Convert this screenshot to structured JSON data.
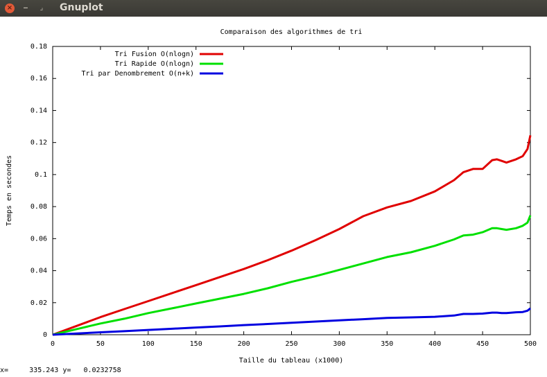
{
  "window": {
    "title": "Gnuplot",
    "close_glyph": "×",
    "minimize_glyph": "‒",
    "maximize_glyph": "⌟"
  },
  "status": {
    "x_label": "x=",
    "x_value": "335.243",
    "y_label": "y=",
    "y_value": "0.0232758"
  },
  "chart_data": {
    "type": "line",
    "title": "Comparaison des algorithmes de tri",
    "xlabel": "Taille du tableau (x1000)",
    "ylabel": "Temps en secondes",
    "xlim": [
      0,
      500
    ],
    "ylim": [
      0,
      0.18
    ],
    "xticks": [
      "0",
      "50",
      "100",
      "150",
      "200",
      "250",
      "300",
      "350",
      "400",
      "450",
      "500"
    ],
    "yticks": [
      "0",
      "0.02",
      "0.04",
      "0.06",
      "0.08",
      "0.1",
      "0.12",
      "0.14",
      "0.16",
      "0.18"
    ],
    "legend_position": "top-left",
    "grid": false,
    "series": [
      {
        "name": "Tri Fusion O(nlogn)",
        "color": "#e00000",
        "x": [
          0,
          25,
          50,
          75,
          100,
          125,
          150,
          175,
          200,
          225,
          250,
          275,
          300,
          325,
          350,
          375,
          400,
          420,
          430,
          440,
          450,
          460,
          465,
          470,
          475,
          485,
          492,
          497,
          500
        ],
        "y": [
          0,
          0.0055,
          0.011,
          0.016,
          0.021,
          0.026,
          0.031,
          0.036,
          0.041,
          0.0465,
          0.0525,
          0.059,
          0.066,
          0.074,
          0.0795,
          0.0835,
          0.0895,
          0.0965,
          0.1015,
          0.1035,
          0.1035,
          0.109,
          0.1095,
          0.1085,
          0.1075,
          0.1095,
          0.1115,
          0.116,
          0.1245
        ]
      },
      {
        "name": "Tri Rapide O(nlogn)",
        "color": "#00e000",
        "x": [
          0,
          25,
          50,
          75,
          100,
          125,
          150,
          175,
          200,
          225,
          250,
          275,
          300,
          325,
          350,
          375,
          400,
          420,
          430,
          440,
          450,
          460,
          465,
          470,
          475,
          485,
          492,
          497,
          500
        ],
        "y": [
          0,
          0.0035,
          0.007,
          0.01,
          0.0135,
          0.0165,
          0.0195,
          0.0225,
          0.0255,
          0.029,
          0.033,
          0.0365,
          0.0405,
          0.0445,
          0.0485,
          0.0515,
          0.0555,
          0.0595,
          0.062,
          0.0625,
          0.064,
          0.0665,
          0.0665,
          0.066,
          0.0655,
          0.0665,
          0.068,
          0.07,
          0.0745
        ]
      },
      {
        "name": "Tri par Denombrement O(n+k)",
        "color": "#0000e0",
        "x": [
          0,
          25,
          50,
          75,
          100,
          125,
          150,
          175,
          200,
          225,
          250,
          275,
          300,
          325,
          350,
          375,
          400,
          420,
          430,
          440,
          450,
          460,
          465,
          470,
          475,
          485,
          492,
          497,
          500
        ],
        "y": [
          0,
          0.0008,
          0.0015,
          0.0022,
          0.003,
          0.0037,
          0.0045,
          0.0052,
          0.006,
          0.0067,
          0.0075,
          0.0082,
          0.009,
          0.0097,
          0.0105,
          0.0108,
          0.0112,
          0.012,
          0.013,
          0.013,
          0.0132,
          0.0138,
          0.0138,
          0.0135,
          0.0135,
          0.014,
          0.0142,
          0.015,
          0.0165
        ]
      }
    ]
  }
}
